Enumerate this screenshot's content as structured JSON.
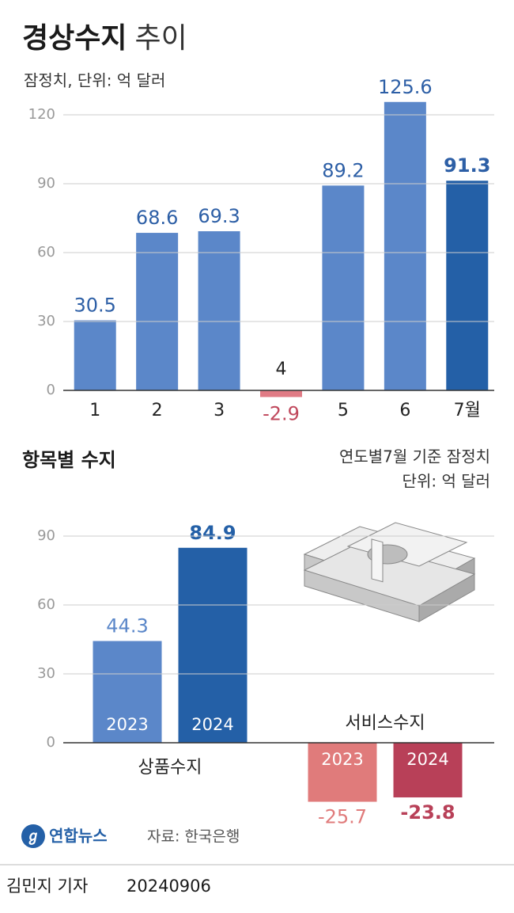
{
  "chart_data": [
    {
      "type": "bar",
      "title": "경상수지",
      "title_light": "추이",
      "subtitle": "잠정치, 단위: 억 달러",
      "categories": [
        "1",
        "2",
        "3",
        "4",
        "5",
        "6",
        "7월"
      ],
      "values": [
        30.5,
        68.6,
        69.3,
        -2.9,
        89.2,
        125.6,
        91.3
      ],
      "colors": [
        "#5b87c9",
        "#5b87c9",
        "#5b87c9",
        "#e07b85",
        "#5b87c9",
        "#5b87c9",
        "#2460a7"
      ],
      "ylim": [
        -10,
        130
      ],
      "yticks": [
        0,
        30,
        60,
        90,
        120
      ],
      "grid": true
    },
    {
      "type": "grouped-bar",
      "title": "항목별 수지",
      "note": "연도별7월 기준 잠정치",
      "unit": "단위: 억 달러",
      "categories": [
        "상품수지",
        "서비스수지"
      ],
      "series": [
        {
          "name": "2023",
          "colors": [
            "#5b87c9",
            "#e07b7b"
          ],
          "values": [
            44.3,
            -25.7
          ]
        },
        {
          "name": "2024",
          "colors": [
            "#2460a7",
            "#b84058"
          ],
          "values": [
            84.9,
            -23.8
          ]
        }
      ],
      "ylim": [
        -30,
        100
      ],
      "yticks": [
        0,
        30,
        60,
        90
      ],
      "grid": true
    }
  ],
  "footer": {
    "logo": "연합뉴스",
    "source": "자료: 한국은행",
    "reporter": "김민지 기자",
    "date": "20240906"
  }
}
